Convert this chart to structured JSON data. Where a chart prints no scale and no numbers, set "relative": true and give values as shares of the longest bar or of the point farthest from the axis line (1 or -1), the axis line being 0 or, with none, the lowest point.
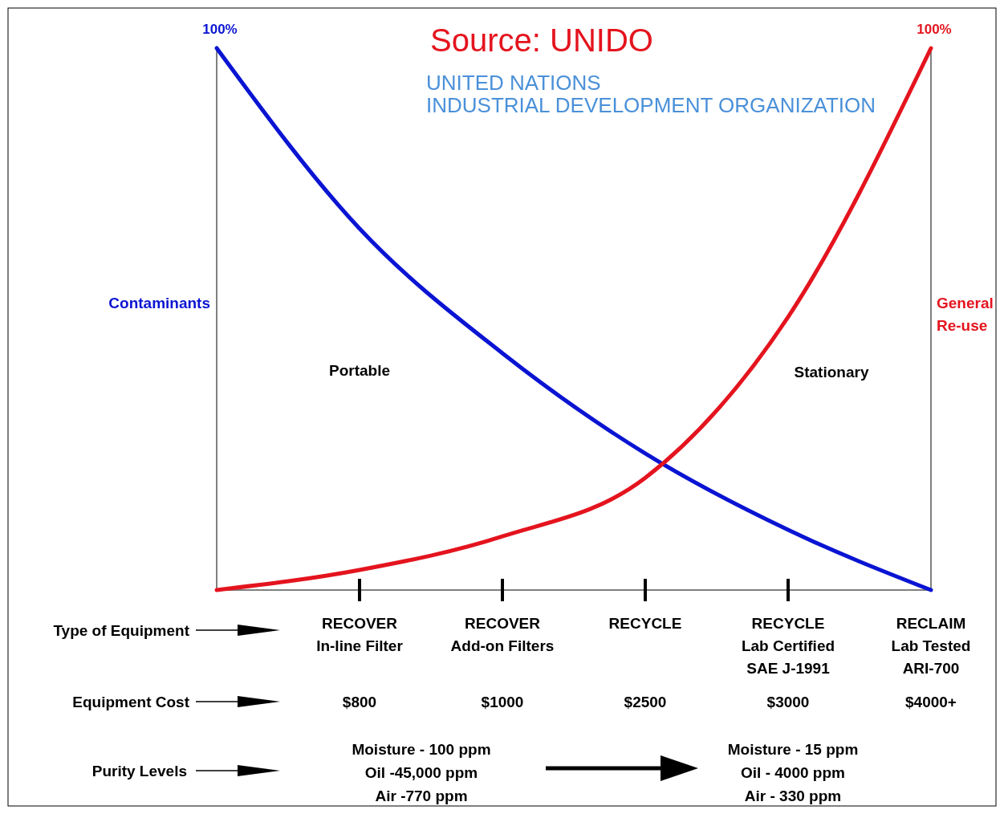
{
  "chart_data": {
    "type": "line",
    "title": "Source: UNIDO",
    "subtitle": "UNITED NATIONS\nINDUSTRIAL DEVELOPMENT ORGANIZATION",
    "xlabel": "Type of Equipment",
    "relative": true,
    "categories": [
      null,
      "RECOVER\nIn-line Filter",
      "RECOVER\nAdd-on Filters",
      "RECYCLE",
      "RECYCLE\nLab Certified\nSAE J-1991",
      "RECLAIM\nLab Tested\nARI-700"
    ],
    "series": [
      {
        "name": "Contaminants",
        "color": "#0a14d2",
        "values": [
          1,
          0.667,
          0.437,
          0.252,
          0.111,
          0
        ]
      },
      {
        "name": "General\nRe-use",
        "color": "#e4141e",
        "values": [
          0,
          0.037,
          0.099,
          0.207,
          0.504,
          1
        ]
      }
    ],
    "annotations": [
      "100%",
      "100%",
      "Portable",
      "Stationary",
      "Equipment Cost",
      "$800",
      "$1000",
      "$2500",
      "$3000",
      "$4000+",
      "Purity Levels",
      "Moisture - 100 ppm\nOil -45,000 ppm\nAir -770 ppm",
      "Moisture - 15 ppm\nOil - 4000 ppm\nAir - 330 ppm"
    ],
    "marker": "none",
    "line_style": "solid"
  }
}
